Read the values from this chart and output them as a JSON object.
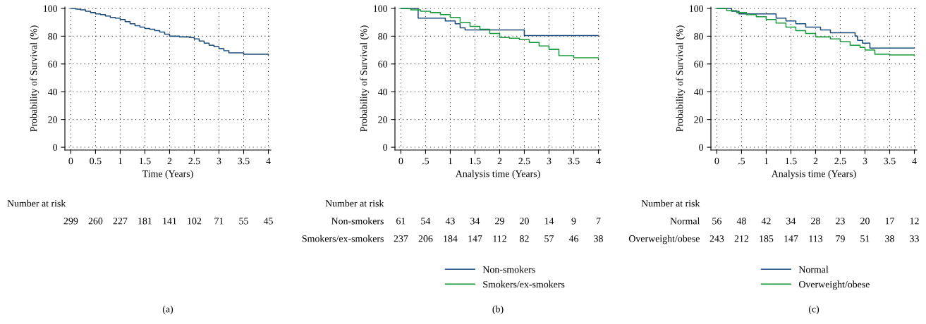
{
  "chart_data": [
    {
      "type": "step",
      "title": "(a)",
      "xlabel": "Time (Years)",
      "ylabel": "Probability of Survival (%)",
      "xlim": [
        -0.12,
        4.05
      ],
      "ylim": [
        -2,
        101
      ],
      "xticks": [
        0,
        0.5,
        1,
        1.5,
        2,
        2.5,
        3,
        3.5,
        4
      ],
      "yticks": [
        0,
        20,
        40,
        60,
        80,
        100
      ],
      "grid": true,
      "legend": false,
      "series": [
        {
          "color": "#1b4a78",
          "x": [
            0,
            0.1,
            0.2,
            0.3,
            0.4,
            0.5,
            0.6,
            0.7,
            0.8,
            0.9,
            1.0,
            1.1,
            1.2,
            1.3,
            1.4,
            1.5,
            1.6,
            1.7,
            1.8,
            1.9,
            2.0,
            2.2,
            2.4,
            2.5,
            2.6,
            2.7,
            2.8,
            2.9,
            3.0,
            3.1,
            3.2,
            3.5,
            4.0
          ],
          "values": [
            100,
            99.5,
            99,
            98,
            97,
            96,
            95.5,
            94.5,
            93.5,
            93,
            92,
            90.5,
            89,
            87.5,
            86.5,
            85.5,
            85,
            84,
            83,
            81.5,
            80,
            79.5,
            79,
            78,
            76.5,
            75,
            73.5,
            72.5,
            71,
            69.5,
            68,
            67,
            66.5
          ]
        }
      ],
      "annotations": [
        "Number at risk",
        "299",
        "260",
        "227",
        "181",
        "141",
        "102",
        "71",
        "55",
        "45"
      ]
    },
    {
      "type": "step",
      "title": "(b)",
      "xlabel": "Analysis time (Years)",
      "ylabel": "Probability of Survival (%)",
      "xlim": [
        -0.12,
        4.05
      ],
      "ylim": [
        -2,
        101
      ],
      "xticks": [
        0,
        {
          "value": 0.5,
          "label": ".5"
        },
        1,
        1.5,
        2,
        2.5,
        3,
        3.5,
        4
      ],
      "yticks": [
        0,
        20,
        40,
        60,
        80,
        100
      ],
      "grid": true,
      "legend": "bottom",
      "series": [
        {
          "name": "Non-smokers",
          "color": "#1b4a78",
          "x": [
            0,
            0.35,
            0.9,
            1.1,
            1.2,
            1.3,
            2.5,
            4.0
          ],
          "values": [
            100,
            93,
            91,
            89,
            86,
            84.5,
            80.5,
            80.5
          ]
        },
        {
          "name": "Smokers/ex-smokers",
          "color": "#1a9a3c",
          "x": [
            0,
            0.2,
            0.4,
            0.6,
            0.8,
            1.0,
            1.2,
            1.4,
            1.6,
            1.8,
            2.0,
            2.2,
            2.4,
            2.6,
            2.8,
            3.0,
            3.2,
            3.5,
            4.0
          ],
          "values": [
            100,
            99,
            98,
            97,
            95.5,
            93.5,
            90,
            87,
            85,
            82,
            79,
            78.5,
            77.5,
            75.5,
            73,
            70.5,
            66,
            64.5,
            64
          ]
        }
      ],
      "annotations": [
        "Number at risk",
        "Non-smokers",
        "61",
        "54",
        "43",
        "34",
        "29",
        "20",
        "14",
        "9",
        "7",
        "Smokers/ex-smokers",
        "237",
        "206",
        "184",
        "147",
        "112",
        "82",
        "57",
        "46",
        "38"
      ]
    },
    {
      "type": "step",
      "title": "(c)",
      "xlabel": "Analysis time (Years)",
      "ylabel": "Probability of Survival (%)",
      "xlim": [
        -0.12,
        4.05
      ],
      "ylim": [
        -2,
        101
      ],
      "xticks": [
        0,
        {
          "value": 0.5,
          "label": ".5"
        },
        1,
        1.5,
        2,
        2.5,
        3,
        3.5,
        4
      ],
      "yticks": [
        0,
        20,
        40,
        60,
        80,
        100
      ],
      "grid": true,
      "legend": "bottom",
      "series": [
        {
          "name": "Normal",
          "color": "#1b4a78",
          "x": [
            0,
            0.3,
            0.45,
            1.2,
            1.4,
            1.6,
            1.8,
            2.1,
            2.3,
            2.8,
            2.85,
            2.95,
            3.1,
            4.0
          ],
          "values": [
            100,
            98,
            96,
            93,
            91,
            89,
            86.5,
            84.5,
            82.5,
            80,
            77,
            75,
            71.5,
            71.5
          ]
        },
        {
          "name": "Overweight/obese",
          "color": "#1a9a3c",
          "x": [
            0,
            0.2,
            0.4,
            0.6,
            0.8,
            1.0,
            1.2,
            1.4,
            1.6,
            1.8,
            2.0,
            2.3,
            2.5,
            2.7,
            2.9,
            3.0,
            3.2,
            3.5,
            4.0
          ],
          "values": [
            100,
            98.5,
            97,
            95.5,
            94,
            92,
            89.5,
            86.5,
            84,
            82,
            79.5,
            78,
            76,
            73.5,
            72,
            70,
            67,
            66.5,
            66
          ]
        }
      ],
      "annotations": [
        "Number at risk",
        "Normal",
        "56",
        "48",
        "42",
        "34",
        "28",
        "23",
        "20",
        "17",
        "12",
        "Overweight/obese",
        "243",
        "212",
        "185",
        "147",
        "113",
        "79",
        "51",
        "38",
        "33"
      ]
    }
  ]
}
